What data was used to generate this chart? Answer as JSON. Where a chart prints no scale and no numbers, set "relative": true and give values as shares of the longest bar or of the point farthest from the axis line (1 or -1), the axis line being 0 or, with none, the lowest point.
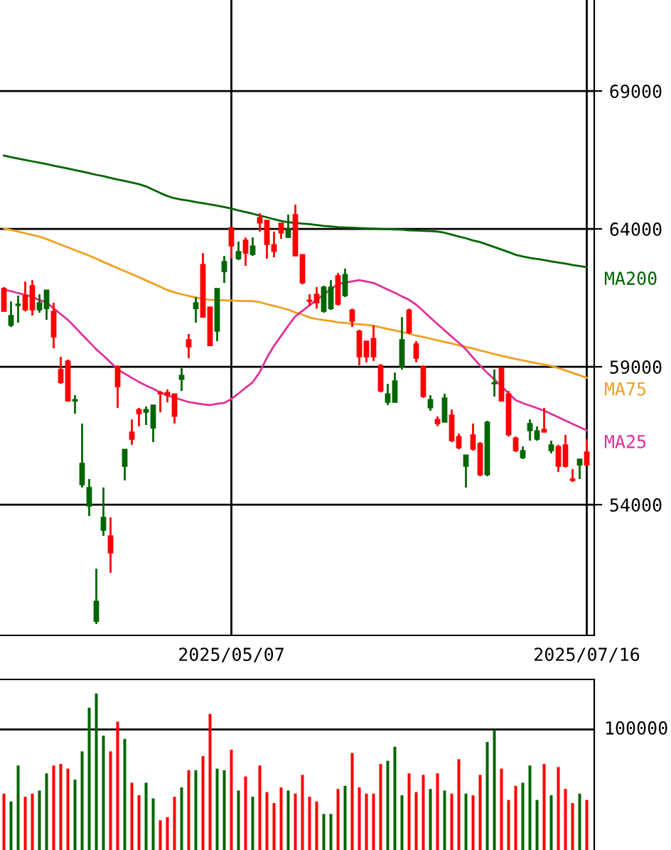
{
  "chart_data": [
    {
      "type": "candlestick",
      "categories": [
        null,
        null,
        null,
        null,
        null,
        null,
        null,
        null,
        null,
        null,
        null,
        null,
        null,
        null,
        null,
        null,
        null,
        null,
        null,
        null,
        null,
        null,
        null,
        null,
        null,
        null,
        null,
        null,
        null,
        null,
        null,
        null,
        "2025/05/07",
        null,
        null,
        null,
        null,
        null,
        null,
        null,
        null,
        null,
        null,
        null,
        null,
        null,
        null,
        null,
        null,
        null,
        null,
        null,
        null,
        null,
        null,
        null,
        null,
        null,
        null,
        null,
        null,
        null,
        null,
        null,
        null,
        null,
        null,
        null,
        null,
        null,
        null,
        null,
        null,
        null,
        null,
        null,
        null,
        null,
        null,
        null,
        null,
        null,
        "2025/07/16"
      ],
      "ohlc": [
        [
          61010,
          61890,
          61010,
          61840
        ],
        [
          60860,
          61370,
          60440,
          60500
        ],
        [
          61270,
          61580,
          60600,
          61220
        ],
        [
          61060,
          62090,
          61010,
          61580
        ],
        [
          61060,
          62140,
          60860,
          61940
        ],
        [
          61320,
          61630,
          60960,
          61060
        ],
        [
          61780,
          61780,
          60700,
          61110
        ],
        [
          60080,
          61320,
          59670,
          61010
        ],
        [
          58430,
          59360,
          58380,
          58900
        ],
        [
          57760,
          59260,
          57760,
          59210
        ],
        [
          57810,
          57970,
          57300,
          57760
        ],
        [
          55500,
          56940,
          54620,
          54720
        ],
        [
          54620,
          54930,
          53590,
          53950
        ],
        [
          50500,
          51680,
          49670,
          49770
        ],
        [
          53540,
          54620,
          52870,
          53070
        ],
        [
          52250,
          53540,
          51530,
          52870
        ],
        [
          58280,
          59050,
          57510,
          59000
        ],
        [
          56010,
          56010,
          54880,
          55390
        ],
        [
          56370,
          57090,
          56170,
          56630
        ],
        [
          57300,
          57510,
          56840,
          57450
        ],
        [
          57450,
          57560,
          56890,
          57350
        ],
        [
          57610,
          57610,
          56270,
          56780
        ],
        [
          58020,
          58120,
          57350,
          58070
        ],
        [
          57970,
          58180,
          57710,
          58070
        ],
        [
          57200,
          58020,
          56940,
          58020
        ],
        [
          58690,
          58950,
          58120,
          58540
        ],
        [
          59720,
          60190,
          59310,
          59980
        ],
        [
          61320,
          61530,
          60600,
          61110
        ],
        [
          60800,
          63120,
          60800,
          62710
        ],
        [
          59770,
          61170,
          59770,
          61170
        ],
        [
          61840,
          61840,
          59930,
          60290
        ],
        [
          62820,
          63020,
          62040,
          62450
        ],
        [
          63380,
          64050,
          62920,
          64050
        ],
        [
          63180,
          63540,
          62870,
          62920
        ],
        [
          63120,
          63690,
          62660,
          63590
        ],
        [
          63380,
          63690,
          63020,
          63070
        ],
        [
          64210,
          64570,
          63900,
          64410
        ],
        [
          63430,
          64310,
          62920,
          64310
        ],
        [
          63180,
          63900,
          62970,
          63430
        ],
        [
          63850,
          64210,
          63640,
          64210
        ],
        [
          64000,
          64520,
          63690,
          63690
        ],
        [
          63020,
          64880,
          63020,
          64520
        ],
        [
          62040,
          63070,
          61990,
          63070
        ],
        [
          61370,
          61630,
          61220,
          61420
        ],
        [
          61320,
          61890,
          61110,
          61630
        ],
        [
          61890,
          61940,
          60960,
          61010
        ],
        [
          61890,
          62140,
          61060,
          61110
        ],
        [
          61270,
          62400,
          61220,
          62300
        ],
        [
          62350,
          62560,
          61530,
          61580
        ],
        [
          60650,
          61110,
          60440,
          61060
        ],
        [
          59360,
          60340,
          59050,
          60290
        ],
        [
          59360,
          59930,
          59160,
          59930
        ],
        [
          59360,
          60500,
          59210,
          60030
        ],
        [
          58120,
          59100,
          58070,
          59050
        ],
        [
          58020,
          58380,
          57610,
          57710
        ],
        [
          58490,
          58790,
          57710,
          57710
        ],
        [
          59980,
          60800,
          58900,
          59000
        ],
        [
          60240,
          61110,
          60190,
          61060
        ],
        [
          59310,
          59930,
          59160,
          59830
        ],
        [
          57920,
          59050,
          57870,
          59000
        ],
        [
          57810,
          57970,
          57400,
          57510
        ],
        [
          56940,
          57200,
          56840,
          57090
        ],
        [
          57870,
          58020,
          56990,
          56990
        ],
        [
          56320,
          57450,
          56270,
          57250
        ],
        [
          56060,
          56580,
          56010,
          56470
        ],
        [
          55800,
          55800,
          54620,
          55390
        ],
        [
          56010,
          56940,
          55960,
          56530
        ],
        [
          55080,
          56270,
          55030,
          56220
        ],
        [
          56990,
          57040,
          55030,
          55080
        ],
        [
          58430,
          58900,
          57920,
          58380
        ],
        [
          57760,
          58950,
          57760,
          58950
        ],
        [
          56530,
          58120,
          56470,
          58020
        ],
        [
          55960,
          56470,
          55910,
          56420
        ],
        [
          55960,
          56110,
          55650,
          55700
        ],
        [
          56940,
          57090,
          56320,
          56680
        ],
        [
          56680,
          56840,
          56320,
          56370
        ],
        [
          56630,
          57510,
          56630,
          56730
        ],
        [
          56170,
          56320,
          55860,
          55960
        ],
        [
          55390,
          56170,
          55190,
          56110
        ],
        [
          55390,
          56530,
          55340,
          56170
        ],
        [
          54880,
          55290,
          54820,
          54930
        ],
        [
          55650,
          55650,
          54930,
          55440
        ],
        [
          55440,
          56370,
          55440,
          55910
        ]
      ],
      "colors": [
        "#ff0000",
        "#006600",
        "#006600",
        "#ff0000",
        "#ff0000",
        "#006600",
        "#006600",
        "#ff0000",
        "#ff0000",
        "#ff0000",
        "#006600",
        "#006600",
        "#006600",
        "#006600",
        "#006600",
        "#ff0000",
        "#ff0000",
        "#006600",
        "#ff0000",
        "#ff0000",
        "#006600",
        "#006600",
        "#ff0000",
        "#ff0000",
        "#ff0000",
        "#006600",
        "#ff0000",
        "#006600",
        "#ff0000",
        "#ff0000",
        "#006600",
        "#006600",
        "#ff0000",
        "#006600",
        "#ff0000",
        "#006600",
        "#ff0000",
        "#ff0000",
        "#ff0000",
        "#ff0000",
        "#006600",
        "#ff0000",
        "#ff0000",
        "#ff0000",
        "#ff0000",
        "#006600",
        "#006600",
        "#ff0000",
        "#006600",
        "#ff0000",
        "#ff0000",
        "#ff0000",
        "#ff0000",
        "#ff0000",
        "#006600",
        "#006600",
        "#006600",
        "#ff0000",
        "#ff0000",
        "#ff0000",
        "#006600",
        "#ff0000",
        "#006600",
        "#ff0000",
        "#ff0000",
        "#006600",
        "#ff0000",
        "#ff0000",
        "#006600",
        "#006600",
        "#ff0000",
        "#ff0000",
        "#ff0000",
        "#006600",
        "#006600",
        "#006600",
        "#ff0000",
        "#006600",
        "#ff0000",
        "#ff0000",
        "#ff0000",
        "#006600",
        "#ff0000"
      ],
      "series": [
        {
          "name": "MA200",
          "type": "line",
          "color": "#006400",
          "values": [
            66660,
            66600,
            66550,
            66500,
            66450,
            66400,
            66350,
            66290,
            66240,
            66190,
            66130,
            66080,
            66020,
            65960,
            65910,
            65850,
            65790,
            65740,
            65680,
            65620,
            65540,
            65420,
            65300,
            65190,
            65110,
            65060,
            65020,
            64970,
            64930,
            64890,
            64840,
            64790,
            64740,
            64670,
            64610,
            64550,
            64480,
            64420,
            64350,
            64290,
            64240,
            64220,
            64190,
            64170,
            64140,
            64110,
            64090,
            64060,
            64050,
            64040,
            64030,
            64020,
            64010,
            64000,
            63990,
            63980,
            63970,
            63950,
            63940,
            63930,
            63920,
            63900,
            63860,
            63790,
            63720,
            63660,
            63580,
            63520,
            63430,
            63340,
            63250,
            63160,
            63060,
            63000,
            62950,
            62910,
            62870,
            62820,
            62780,
            62740,
            62690,
            62650,
            62610
          ]
        },
        {
          "name": "MA75",
          "type": "line",
          "color": "#f0a020",
          "values": [
            64020,
            63960,
            63900,
            63840,
            63780,
            63720,
            63630,
            63530,
            63430,
            63330,
            63230,
            63130,
            63030,
            62920,
            62800,
            62690,
            62580,
            62470,
            62360,
            62250,
            62130,
            62020,
            61900,
            61780,
            61700,
            61630,
            61570,
            61510,
            61460,
            61430,
            61420,
            61410,
            61400,
            61390,
            61380,
            61380,
            61340,
            61270,
            61210,
            61140,
            61070,
            60970,
            60890,
            60790,
            60730,
            60690,
            60660,
            60610,
            60590,
            60560,
            60540,
            60520,
            60490,
            60430,
            60370,
            60320,
            60260,
            60200,
            60130,
            60080,
            60020,
            59960,
            59900,
            59840,
            59780,
            59720,
            59660,
            59590,
            59530,
            59460,
            59400,
            59340,
            59280,
            59230,
            59180,
            59130,
            59080,
            59030,
            58950,
            58870,
            58780,
            58690,
            58600
          ]
        },
        {
          "name": "MA25",
          "type": "line",
          "color": "#e0309a",
          "values": [
            61800,
            61740,
            61670,
            61610,
            61530,
            61420,
            61330,
            61120,
            60910,
            60700,
            60440,
            60170,
            59900,
            59630,
            59400,
            59160,
            58910,
            58750,
            58600,
            58450,
            58320,
            58200,
            58070,
            57960,
            57880,
            57800,
            57720,
            57680,
            57640,
            57610,
            57660,
            57690,
            57830,
            58030,
            58240,
            58440,
            58810,
            59330,
            59760,
            60120,
            60490,
            60830,
            61030,
            61230,
            61420,
            61620,
            61820,
            62000,
            62050,
            62100,
            62140,
            62090,
            62040,
            61920,
            61800,
            61680,
            61550,
            61430,
            61250,
            61020,
            60780,
            60550,
            60320,
            60090,
            59870,
            59630,
            59330,
            59040,
            58780,
            58540,
            58290,
            58040,
            57790,
            57680,
            57590,
            57500,
            57410,
            57290,
            57170,
            57050,
            56930,
            56810,
            56690
          ]
        }
      ],
      "ylim": [
        49260,
        72300
      ],
      "yticks": [
        54000,
        59000,
        64000,
        69000
      ],
      "grid": true,
      "legend": false
    },
    {
      "type": "bar",
      "relative": true,
      "categories": [
        null,
        null,
        null,
        null,
        null,
        null,
        null,
        null,
        null,
        null,
        null,
        null,
        null,
        null,
        null,
        null,
        null,
        null,
        null,
        null,
        null,
        null,
        null,
        null,
        null,
        null,
        null,
        null,
        null,
        null,
        null,
        null,
        null,
        null,
        null,
        null,
        null,
        null,
        null,
        null,
        null,
        null,
        null,
        null,
        null,
        null,
        null,
        null,
        null,
        null,
        null,
        null,
        null,
        null,
        null,
        null,
        null,
        null,
        null,
        null,
        null,
        null,
        null,
        null,
        null,
        null,
        null,
        null,
        null,
        null,
        null,
        null,
        null,
        null,
        null,
        null,
        null,
        null,
        null,
        null,
        null,
        null,
        null
      ],
      "values": [
        0.36,
        0.31,
        0.54,
        0.34,
        0.36,
        0.38,
        0.49,
        0.54,
        0.55,
        0.52,
        0.45,
        0.63,
        0.91,
        1,
        0.73,
        0.63,
        0.82,
        0.71,
        0.43,
        0.35,
        0.43,
        0.33,
        0.19,
        0.21,
        0.34,
        0.4,
        0.51,
        0.51,
        0.6,
        0.87,
        0.52,
        0.51,
        0.64,
        0.38,
        0.47,
        0.34,
        0.54,
        0.37,
        0.3,
        0.4,
        0.38,
        0.36,
        0.48,
        0.34,
        0.31,
        0.23,
        0.23,
        0.39,
        0.41,
        0.62,
        0.4,
        0.36,
        0.36,
        0.55,
        0.57,
        0.66,
        0.35,
        0.49,
        0.37,
        0.48,
        0.39,
        0.49,
        0.38,
        0.36,
        0.58,
        0.36,
        0.35,
        0.48,
        0.69,
        0.77,
        0.52,
        0.32,
        0.41,
        0.43,
        0.54,
        0.32,
        0.55,
        0.35,
        0.53,
        0.39,
        0.3,
        0.36,
        0.32
      ],
      "colors": [
        "#ff0000",
        "#006600",
        "#006600",
        "#ff0000",
        "#ff0000",
        "#006600",
        "#006600",
        "#ff0000",
        "#ff0000",
        "#ff0000",
        "#006600",
        "#006600",
        "#006600",
        "#006600",
        "#006600",
        "#ff0000",
        "#ff0000",
        "#006600",
        "#ff0000",
        "#ff0000",
        "#006600",
        "#006600",
        "#ff0000",
        "#ff0000",
        "#ff0000",
        "#006600",
        "#ff0000",
        "#006600",
        "#ff0000",
        "#ff0000",
        "#006600",
        "#006600",
        "#ff0000",
        "#006600",
        "#ff0000",
        "#006600",
        "#ff0000",
        "#ff0000",
        "#ff0000",
        "#ff0000",
        "#006600",
        "#ff0000",
        "#ff0000",
        "#ff0000",
        "#ff0000",
        "#006600",
        "#006600",
        "#ff0000",
        "#006600",
        "#ff0000",
        "#ff0000",
        "#ff0000",
        "#ff0000",
        "#ff0000",
        "#006600",
        "#006600",
        "#006600",
        "#ff0000",
        "#ff0000",
        "#ff0000",
        "#006600",
        "#ff0000",
        "#006600",
        "#ff0000",
        "#ff0000",
        "#006600",
        "#ff0000",
        "#ff0000",
        "#006600",
        "#006600",
        "#ff0000",
        "#ff0000",
        "#ff0000",
        "#006600",
        "#006600",
        "#006600",
        "#ff0000",
        "#006600",
        "#ff0000",
        "#ff0000",
        "#ff0000",
        "#006600",
        "#ff0000"
      ],
      "ref_lines": [
        {
          "axis": "y",
          "value": 0.77,
          "color": "#000000"
        }
      ],
      "annotations": [
        "100000"
      ]
    }
  ]
}
